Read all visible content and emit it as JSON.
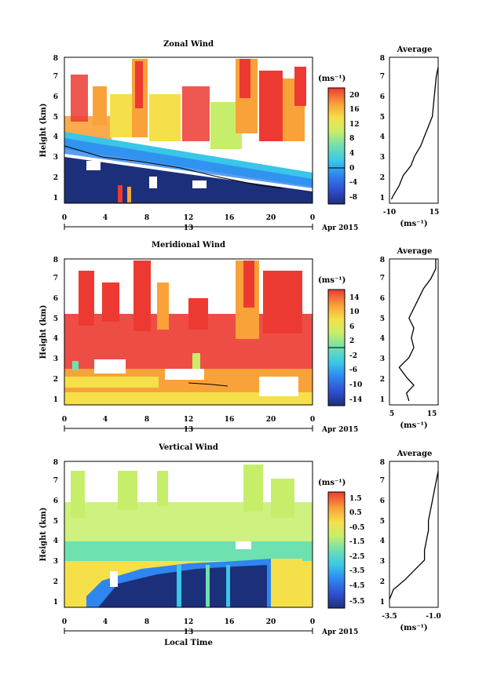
{
  "panels": [
    {
      "id": "zonal",
      "title": "Zonal Wind",
      "ylabel": "Height (km)",
      "unit_label": "(ms⁻¹)",
      "date_label": "13",
      "date_note": "Apr 2015",
      "x_ticks": [
        "0",
        "4",
        "8",
        "12",
        "16",
        "20",
        "0"
      ],
      "y_ticks": [
        "1",
        "2",
        "3",
        "4",
        "5",
        "6",
        "7",
        "8"
      ],
      "colorbar": {
        "ticks": [
          "20",
          "16",
          "12",
          "8",
          "4",
          "0",
          "-4",
          "-8"
        ],
        "range": [
          -10,
          22
        ]
      },
      "avg_title": "Average",
      "avg_xlabel": "(ms⁻¹)",
      "avg_x_ticks": [
        "-10",
        "15"
      ],
      "avg_xlim": [
        -10,
        15
      ]
    },
    {
      "id": "meridional",
      "title": "Meridional Wind",
      "ylabel": "Height (km)",
      "unit_label": "(ms⁻¹)",
      "date_label": "13",
      "date_note": "Apr 2015",
      "x_ticks": [
        "0",
        "4",
        "8",
        "12",
        "16",
        "20",
        "0"
      ],
      "y_ticks": [
        "1",
        "2",
        "3",
        "4",
        "5",
        "6",
        "7",
        "8"
      ],
      "colorbar": {
        "ticks": [
          "14",
          "10",
          "6",
          "2",
          "-2",
          "-6",
          "-10",
          "-14"
        ],
        "range": [
          -16,
          16
        ]
      },
      "avg_title": "Average",
      "avg_xlabel": "(ms⁻¹)",
      "avg_x_ticks": [
        "5",
        "15"
      ],
      "avg_xlim": [
        5,
        15
      ]
    },
    {
      "id": "vertical",
      "title": "Vertical Wind",
      "ylabel": "Height (km)",
      "unit_label": "(ms⁻¹)",
      "date_label": "13",
      "date_note": "Apr 2015",
      "x_ticks": [
        "0",
        "4",
        "8",
        "12",
        "16",
        "20",
        "0"
      ],
      "y_ticks": [
        "1",
        "2",
        "3",
        "4",
        "5",
        "6",
        "7",
        "8"
      ],
      "colorbar": {
        "ticks": [
          "1.5",
          "0.5",
          "-0.5",
          "-1.5",
          "-2.5",
          "-3.5",
          "-4.5",
          "-5.5"
        ],
        "range": [
          -6,
          2
        ]
      },
      "avg_title": "Average",
      "avg_xlabel": "(ms⁻¹)",
      "avg_x_ticks": [
        "-3.5",
        "-1.0"
      ],
      "avg_xlim": [
        -3.5,
        -1.0
      ]
    }
  ],
  "x_axis_title": "Local Time",
  "chart_data": [
    {
      "type": "heatmap",
      "title": "Zonal Wind",
      "xlabel": "Local Time",
      "ylabel": "Height (km)",
      "xlim": [
        0,
        24
      ],
      "ylim": [
        0.6,
        8
      ],
      "colorbar_range": [
        -10,
        22
      ],
      "colorbar_ticks": [
        20,
        16,
        12,
        8,
        4,
        0,
        -4,
        -8
      ],
      "approx_zero_wind_height_km": {
        "x": [
          0,
          4,
          8,
          12,
          16,
          20,
          21
        ],
        "height": [
          3.7,
          3.2,
          3.0,
          2.6,
          2.2,
          1.8,
          1.7
        ]
      },
      "average_profile": {
        "title": "Average",
        "xlabel": "(ms⁻¹)",
        "xlim": [
          -10,
          15
        ],
        "height": [
          0.8,
          1.0,
          1.5,
          2.0,
          2.5,
          3.0,
          3.5,
          4.0,
          4.5,
          5.0,
          5.5,
          6.0,
          6.5,
          7.0,
          7.5
        ],
        "value": [
          -9,
          -8,
          -5,
          -3,
          1,
          3,
          6,
          8,
          10,
          12,
          12.5,
          13,
          13.5,
          14,
          15
        ]
      }
    },
    {
      "type": "heatmap",
      "title": "Meridional Wind",
      "xlabel": "Local Time",
      "ylabel": "Height (km)",
      "xlim": [
        0,
        24
      ],
      "ylim": [
        0.6,
        8
      ],
      "colorbar_range": [
        -16,
        16
      ],
      "colorbar_ticks": [
        14,
        10,
        6,
        2,
        -2,
        -6,
        -10,
        -14
      ],
      "average_profile": {
        "title": "Average",
        "xlabel": "(ms⁻¹)",
        "xlim": [
          5,
          15
        ],
        "height": [
          0.8,
          1.2,
          1.6,
          2.0,
          2.5,
          3.0,
          3.5,
          4.0,
          4.5,
          5.0,
          5.5,
          6.0,
          6.5,
          7.0,
          7.5,
          8.0
        ],
        "value": [
          9,
          8.5,
          10,
          8.5,
          7,
          9,
          10,
          9.5,
          10,
          9,
          10,
          11,
          12,
          13.5,
          14.5,
          14.5
        ]
      }
    },
    {
      "type": "heatmap",
      "title": "Vertical Wind",
      "xlabel": "Local Time",
      "ylabel": "Height (km)",
      "xlim": [
        0,
        24
      ],
      "ylim": [
        0.6,
        8
      ],
      "colorbar_range": [
        -6,
        2
      ],
      "colorbar_ticks": [
        1.5,
        0.5,
        -0.5,
        -1.5,
        -2.5,
        -3.5,
        -4.5,
        -5.5
      ],
      "average_profile": {
        "title": "Average",
        "xlabel": "(ms⁻¹)",
        "xlim": [
          -3.5,
          -1.0
        ],
        "height": [
          1.0,
          1.5,
          2.0,
          2.5,
          3.0,
          3.5,
          4.0,
          4.5,
          5.0,
          5.5,
          6.0,
          6.5,
          7.0,
          7.5
        ],
        "value": [
          -3.6,
          -3.3,
          -2.7,
          -2.2,
          -1.7,
          -1.7,
          -1.6,
          -1.5,
          -1.5,
          -1.4,
          -1.3,
          -1.2,
          -1.1,
          -1.0
        ]
      }
    }
  ]
}
